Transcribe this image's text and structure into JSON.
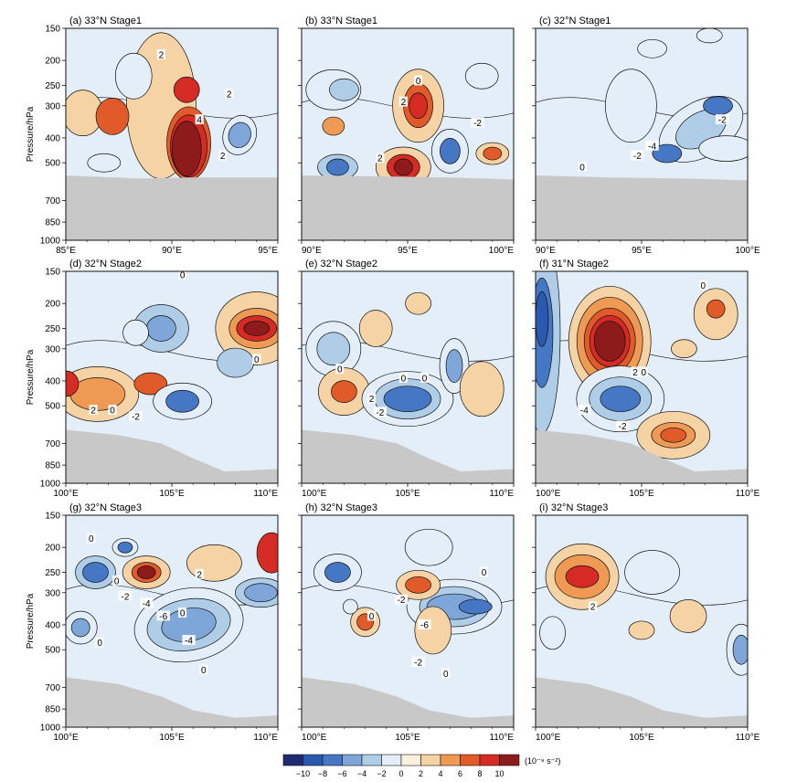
{
  "chart_data": [
    {
      "type": "heatmap",
      "panel_label": "(a) 33°N Stage1",
      "x_ticks": [
        "85°E",
        "90°E",
        "95°E"
      ],
      "xlim": [
        85,
        95
      ],
      "y_ticks": [
        "150",
        "200",
        "250",
        "300",
        "400",
        "500",
        "700",
        "850",
        "1000"
      ],
      "ylim_hPa": [
        1000,
        150
      ],
      "ylabel": "Pressure/hPa",
      "contour_labels": [
        "2",
        "4",
        "2",
        "2"
      ],
      "terrain_top_hPa": 560
    },
    {
      "type": "heatmap",
      "panel_label": "(b) 33°N Stage1",
      "x_ticks": [
        "90°E",
        "95°E",
        "100°E"
      ],
      "xlim": [
        90,
        100
      ],
      "y_ticks": [
        "150",
        "200",
        "250",
        "300",
        "400",
        "500",
        "700",
        "850",
        "1000"
      ],
      "ylim_hPa": [
        1000,
        150
      ],
      "ylabel": "",
      "contour_labels": [
        "0",
        "2",
        "-2",
        "2"
      ],
      "terrain_top_hPa": 560
    },
    {
      "type": "heatmap",
      "panel_label": "(c) 32°N Stage1",
      "x_ticks": [
        "90°E",
        "95°E",
        "100°E"
      ],
      "xlim": [
        90,
        100
      ],
      "y_ticks": [
        "150",
        "200",
        "250",
        "300",
        "400",
        "500",
        "700",
        "850",
        "1000"
      ],
      "ylim_hPa": [
        1000,
        150
      ],
      "ylabel": "",
      "contour_labels": [
        "-2",
        "-4",
        "-2",
        "0"
      ],
      "terrain_top_hPa": 560
    },
    {
      "type": "heatmap",
      "panel_label": "(d) 32°N Stage2",
      "x_ticks": [
        "100°E",
        "105°E",
        "110°E"
      ],
      "xlim": [
        100,
        110
      ],
      "y_ticks": [
        "150",
        "200",
        "250",
        "300",
        "400",
        "500",
        "700",
        "850",
        "1000"
      ],
      "ylim_hPa": [
        1000,
        150
      ],
      "ylabel": "Pressure/hPa",
      "contour_labels": [
        "0",
        "0",
        "2",
        "0",
        "-2"
      ],
      "terrain_top_hPa": 620
    },
    {
      "type": "heatmap",
      "panel_label": "(e) 32°N Stage2",
      "x_ticks": [
        "100°E",
        "105°E",
        "110°E"
      ],
      "xlim": [
        100,
        110
      ],
      "y_ticks": [
        "150",
        "200",
        "250",
        "300",
        "400",
        "500",
        "700",
        "850",
        "1000"
      ],
      "ylim_hPa": [
        1000,
        150
      ],
      "ylabel": "",
      "contour_labels": [
        "0",
        "0",
        "2",
        "0",
        "-2"
      ],
      "terrain_top_hPa": 620
    },
    {
      "type": "heatmap",
      "panel_label": "(f) 31°N Stage2",
      "x_ticks": [
        "100°E",
        "105°E",
        "110°E"
      ],
      "xlim": [
        100,
        110
      ],
      "y_ticks": [
        "150",
        "200",
        "250",
        "300",
        "400",
        "500",
        "700",
        "850",
        "1000"
      ],
      "ylim_hPa": [
        1000,
        150
      ],
      "ylabel": "",
      "contour_labels": [
        "0",
        "2",
        "0",
        "-4",
        "-2"
      ],
      "terrain_top_hPa": 620
    },
    {
      "type": "heatmap",
      "panel_label": "(g) 32°N Stage3",
      "x_ticks": [
        "100°E",
        "105°E",
        "110°E"
      ],
      "xlim": [
        100,
        110
      ],
      "y_ticks": [
        "150",
        "200",
        "250",
        "300",
        "400",
        "500",
        "700",
        "850",
        "1000"
      ],
      "ylim_hPa": [
        1000,
        150
      ],
      "ylabel": "Pressure/hPa",
      "contour_labels": [
        "0",
        "0",
        "2",
        "-2",
        "-4",
        "-6",
        "0",
        "-4",
        "0",
        "0"
      ],
      "terrain_top_hPa": 640
    },
    {
      "type": "heatmap",
      "panel_label": "(h) 32°N Stage3",
      "x_ticks": [
        "100°E",
        "105°E",
        "110°E"
      ],
      "xlim": [
        100,
        110
      ],
      "y_ticks": [
        "150",
        "200",
        "250",
        "300",
        "400",
        "500",
        "700",
        "850",
        "1000"
      ],
      "ylim_hPa": [
        1000,
        150
      ],
      "ylabel": "",
      "contour_labels": [
        "0",
        "-2",
        "0",
        "-6",
        "-2",
        "0"
      ],
      "terrain_top_hPa": 640
    },
    {
      "type": "heatmap",
      "panel_label": "(i) 32°N Stage3",
      "x_ticks": [
        "100°E",
        "105°E",
        "110°E"
      ],
      "xlim": [
        100,
        110
      ],
      "y_ticks": [
        "150",
        "200",
        "250",
        "300",
        "400",
        "500",
        "700",
        "850",
        "1000"
      ],
      "ylim_hPa": [
        1000,
        150
      ],
      "ylabel": "",
      "contour_labels": [
        "2"
      ],
      "terrain_top_hPa": 640
    }
  ],
  "colorbar": {
    "ticks": [
      "−10",
      "−8",
      "−6",
      "−4",
      "−2",
      "0",
      "2",
      "4",
      "6",
      "8",
      "10"
    ],
    "unit": "(10⁻⁹ s⁻²)",
    "colors": [
      "#1f2a72",
      "#2a5ab0",
      "#4677c5",
      "#7ea6d8",
      "#b0cde8",
      "#e4eef8",
      "#fcf1df",
      "#f6d3a5",
      "#ee9a55",
      "#e05a2a",
      "#d62a25",
      "#8e1b1b"
    ]
  },
  "colors": {
    "terrain": "#c8c8c8",
    "contour": "#111111"
  }
}
